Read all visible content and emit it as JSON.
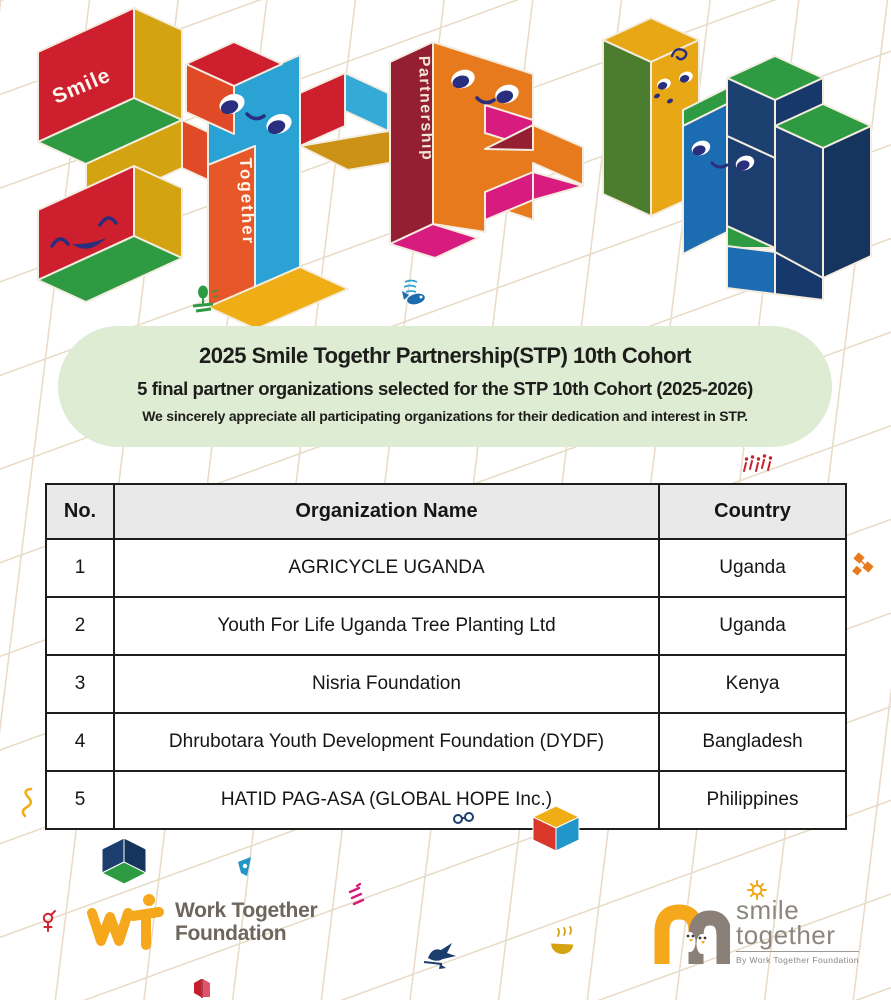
{
  "art": {
    "smile_label": "Smile",
    "together_label": "Together",
    "partnership_label": "Partnership",
    "letters": [
      "S",
      "T",
      "P",
      "1",
      "0"
    ],
    "palette": {
      "red": "#ce1f2f",
      "orange_red": "#e04a26",
      "gold": "#d4a312",
      "gold_bright": "#efae15",
      "green": "#2e9b43",
      "dark_green": "#4c7c2d",
      "blue": "#2aa2d3",
      "cyan": "#35aad6",
      "maroon": "#941f33",
      "orange": "#e87a1e",
      "pink": "#d81b7f",
      "steel_blue": "#1b6cb0",
      "navy": "#1b3e6e",
      "navy_dark": "#16355e",
      "eye_navy": "#2a2e7e",
      "outline": "#f3ecdf"
    }
  },
  "banner": {
    "title": "2025 Smile Togethr Partnership(STP) 10th Cohort",
    "subtitle": "5 final partner organizations selected for the STP 10th Cohort (2025-2026)",
    "note": "We sincerely appreciate all participating organizations for their dedication and interest in STP.",
    "background": "#ddecd3"
  },
  "table": {
    "columns": [
      "No.",
      "Organization Name",
      "Country"
    ],
    "rows": [
      [
        "1",
        "AGRICYCLE UGANDA",
        "Uganda"
      ],
      [
        "2",
        "Youth For Life Uganda Tree Planting Ltd",
        "Uganda"
      ],
      [
        "3",
        "Nisria Foundation",
        "Kenya"
      ],
      [
        "4",
        "Dhrubotara Youth Development Foundation (DYDF)",
        "Bangladesh"
      ],
      [
        "5",
        "HATID PAG-ASA (GLOBAL HOPE Inc.)",
        "Philippines"
      ]
    ]
  },
  "footer": {
    "wtf_logo": {
      "line1": "Work Together",
      "line2": "Foundation",
      "accent": "#f5a81c",
      "text_color": "#6e665c"
    },
    "smile_logo": {
      "line1": "smile",
      "line2": "together",
      "byline": "By Work Together Foundation",
      "orange": "#f5a81c",
      "taupe": "#8a8078"
    }
  },
  "decorative_icons": [
    "tree-icon",
    "fish-icon",
    "people-icon",
    "molecule-icon",
    "ribbon-squiggle-icon",
    "navy-cube-icon",
    "pin-icon",
    "glasses-icon",
    "color-cube-icon",
    "pink-squiggle-icon",
    "bird-icon",
    "bowl-steam-icon",
    "book-icon",
    "gender-icon",
    "sun-icon"
  ]
}
